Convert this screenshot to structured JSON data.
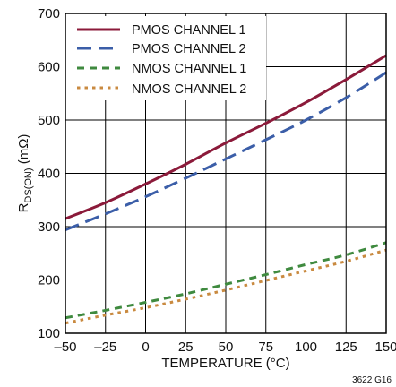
{
  "figure_id": "3622 G16",
  "chart_data": {
    "type": "line",
    "title": "",
    "xlabel": "TEMPERATURE (°C)",
    "ylabel_main": "R",
    "ylabel_sub": "DS(ON)",
    "ylabel_unit": " (mΩ)",
    "xlim": [
      -50,
      150
    ],
    "ylim": [
      100,
      700
    ],
    "x_ticks": [
      -50,
      -25,
      0,
      25,
      50,
      75,
      100,
      125,
      150
    ],
    "x_tick_labels": [
      "–50",
      "–25",
      "0",
      "25",
      "50",
      "75",
      "100",
      "125",
      "150"
    ],
    "y_ticks": [
      100,
      200,
      300,
      400,
      500,
      600,
      700
    ],
    "y_tick_labels": [
      "100",
      "200",
      "300",
      "400",
      "500",
      "600",
      "700"
    ],
    "grid": true,
    "legend_position": "top-left",
    "series": [
      {
        "name": "PMOS CHANNEL 1",
        "color": "#8b1a3a",
        "dash": "solid",
        "x": [
          -50,
          -25,
          0,
          25,
          50,
          75,
          100,
          125,
          150
        ],
        "y": [
          315,
          345,
          380,
          417,
          457,
          494,
          533,
          576,
          621
        ]
      },
      {
        "name": "PMOS CHANNEL 2",
        "color": "#3b5ea8",
        "dash": "long-dash",
        "x": [
          -50,
          -25,
          0,
          25,
          50,
          75,
          100,
          125,
          150
        ],
        "y": [
          294,
          324,
          356,
          391,
          427,
          463,
          500,
          542,
          589
        ]
      },
      {
        "name": "NMOS CHANNEL 1",
        "color": "#3f8a3f",
        "dash": "dash",
        "x": [
          -50,
          -25,
          0,
          25,
          50,
          75,
          100,
          125,
          150
        ],
        "y": [
          129,
          143,
          158,
          174,
          192,
          210,
          229,
          247,
          270
        ]
      },
      {
        "name": "NMOS CHANNEL 2",
        "color": "#c98a40",
        "dash": "dot",
        "x": [
          -50,
          -25,
          0,
          25,
          50,
          75,
          100,
          125,
          150
        ],
        "y": [
          119,
          134,
          148,
          164,
          181,
          199,
          217,
          235,
          256
        ]
      }
    ]
  }
}
